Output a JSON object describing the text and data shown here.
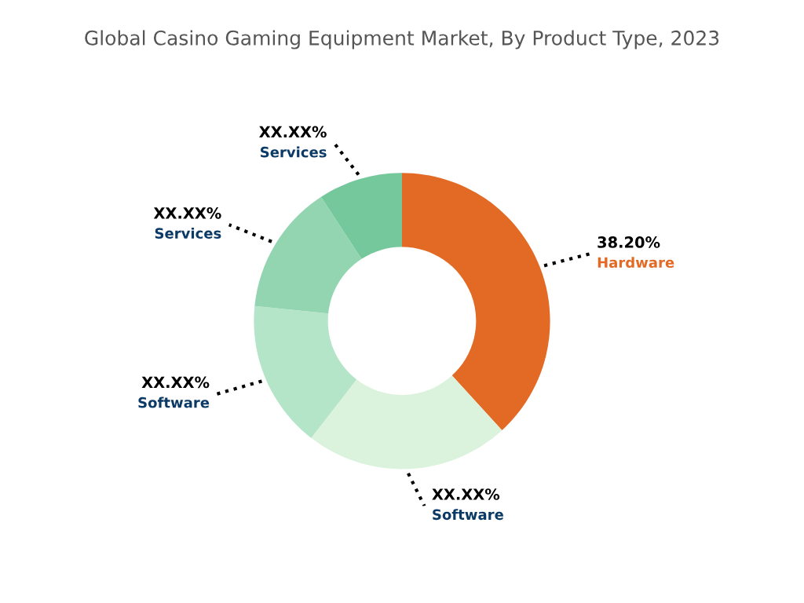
{
  "chart_data": {
    "type": "donut",
    "title": "Global Casino Gaming Equipment Market, By Product Type, 2023",
    "categories": [
      "Hardware",
      "Software",
      "Software",
      "Services",
      "Services"
    ],
    "values": [
      38.2,
      22.3,
      16.1,
      14.2,
      9.2
    ],
    "value_labels": [
      "38.20%",
      "XX.XX%",
      "XX.XX%",
      "XX.XX%",
      "XX.XX%"
    ],
    "colors": [
      "#e36a25",
      "#dbf2dd",
      "#b5e5c8",
      "#93d5b0",
      "#75c89c"
    ],
    "legend": false
  }
}
